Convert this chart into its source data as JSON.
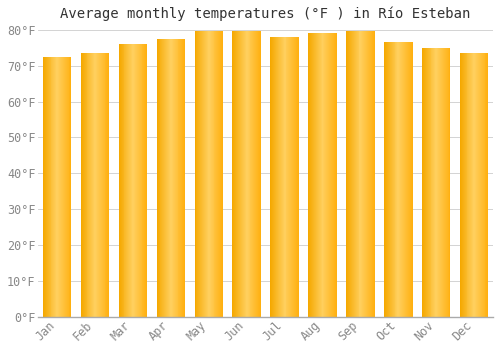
{
  "title": "Average monthly temperatures (°F ) in Río Esteban",
  "months": [
    "Jan",
    "Feb",
    "Mar",
    "Apr",
    "May",
    "Jun",
    "Jul",
    "Aug",
    "Sep",
    "Oct",
    "Nov",
    "Dec"
  ],
  "values": [
    72.5,
    73.5,
    76.0,
    77.5,
    79.5,
    79.5,
    78.0,
    79.0,
    79.5,
    76.5,
    75.0,
    73.5
  ],
  "bar_color_left": "#F5A800",
  "bar_color_center": "#FFD060",
  "bar_color_right": "#FFC020",
  "background_color": "#FFFFFF",
  "grid_color": "#CCCCCC",
  "text_color": "#888888",
  "ylim": [
    0,
    80
  ],
  "yticks": [
    0,
    10,
    20,
    30,
    40,
    50,
    60,
    70,
    80
  ],
  "title_fontsize": 10,
  "tick_fontsize": 8.5
}
